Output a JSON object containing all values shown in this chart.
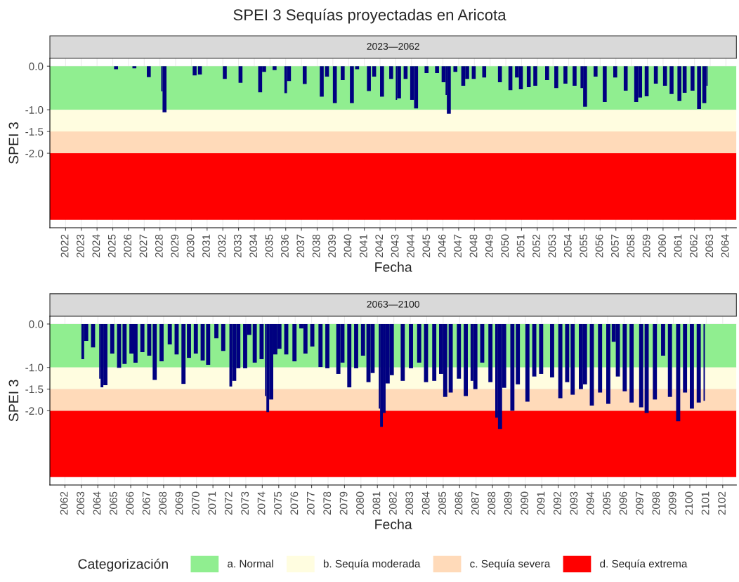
{
  "chart_data": [
    {
      "type": "bar",
      "title": "SPEI 3 Sequías proyectadas en Aricota",
      "subtitle": "2023—2062",
      "xlabel": "Fecha",
      "ylabel": "SPEI 3",
      "x": [
        "2025-02",
        "2026-04",
        "2027-03",
        "2028-02",
        "2028-03",
        "2030-02",
        "2030-06",
        "2032-01",
        "2033-01",
        "2034-04",
        "2034-07",
        "2035-03",
        "2035-12",
        "2036-02",
        "2037-02",
        "2038-03",
        "2038-07",
        "2039-01",
        "2039-07",
        "2040-02",
        "2040-06",
        "2041-03",
        "2041-07",
        "2042-01",
        "2042-08",
        "2043-01",
        "2043-02",
        "2043-07",
        "2043-12",
        "2044-03",
        "2044-11",
        "2045-07",
        "2045-12",
        "2046-03",
        "2046-04",
        "2046-09",
        "2047-03",
        "2047-06",
        "2047-11",
        "2048-07",
        "2049-07",
        "2050-03",
        "2050-08",
        "2050-11",
        "2051-05",
        "2051-10",
        "2052-07",
        "2053-02",
        "2053-09",
        "2054-04",
        "2054-10",
        "2054-12",
        "2055-08",
        "2056-03",
        "2056-11",
        "2057-07",
        "2058-03",
        "2058-06",
        "2058-11",
        "2059-06",
        "2060-01",
        "2060-06",
        "2060-12",
        "2061-04",
        "2061-10",
        "2062-03",
        "2062-07",
        "2062-10"
      ],
      "series": [
        {
          "color": "#000080",
          "values": [
            -0.07,
            -0.05,
            -0.25,
            -0.58,
            -1.06,
            -0.21,
            -0.19,
            -0.29,
            -0.38,
            -0.6,
            -0.13,
            -0.09,
            -0.62,
            -0.34,
            -0.41,
            -0.7,
            -0.24,
            -0.85,
            -0.32,
            -0.85,
            -0.07,
            -0.57,
            -0.24,
            -0.7,
            -0.29,
            -0.77,
            -0.74,
            -0.29,
            -0.77,
            -0.97,
            -0.16,
            -0.16,
            -0.37,
            -0.66,
            -1.09,
            -0.13,
            -0.45,
            -0.29,
            -0.29,
            -0.26,
            -0.37,
            -0.55,
            -0.26,
            -0.53,
            -0.48,
            -0.45,
            -0.32,
            -0.5,
            -0.4,
            -0.45,
            -0.5,
            -0.93,
            -0.24,
            -0.82,
            -0.26,
            -0.56,
            -0.82,
            -0.72,
            -0.69,
            -0.4,
            -0.45,
            -0.64,
            -0.8,
            -0.61,
            -0.56,
            -0.98,
            -0.85,
            -0.45
          ]
        }
      ],
      "xlim": [
        "2021-01",
        "2064-09"
      ],
      "xticks": [
        "2022",
        "2023",
        "2024",
        "2025",
        "2026",
        "2027",
        "2028",
        "2029",
        "2030",
        "2031",
        "2032",
        "2033",
        "2034",
        "2035",
        "2036",
        "2037",
        "2038",
        "2039",
        "2040",
        "2041",
        "2042",
        "2043",
        "2044",
        "2045",
        "2046",
        "2047",
        "2048",
        "2049",
        "2050",
        "2051",
        "2052",
        "2053",
        "2054",
        "2055",
        "2056",
        "2057",
        "2058",
        "2059",
        "2060",
        "2061",
        "2062",
        "2063",
        "2064"
      ],
      "ylim": [
        -3.71,
        0.18
      ],
      "yticks": [
        {
          "value": 0,
          "label": "0.0"
        },
        {
          "value": -1,
          "label": "-1.0"
        },
        {
          "value": -1.5,
          "label": "-1.5"
        },
        {
          "value": -2,
          "label": "-2.0"
        }
      ],
      "bands": [
        {
          "axis": "y",
          "from": 0,
          "to": -1,
          "color": "#90ee90"
        },
        {
          "axis": "y",
          "from": -1,
          "to": -1.5,
          "color": "#fffde0"
        },
        {
          "axis": "y",
          "from": -1.5,
          "to": -2,
          "color": "#ffdab9"
        },
        {
          "axis": "y",
          "from": -2,
          "to": -3.53,
          "color": "#ff0000"
        }
      ],
      "grid": true
    },
    {
      "type": "bar",
      "subtitle": "2063—2100",
      "xlabel": "Fecha",
      "ylabel": "SPEI 3",
      "legend_title": "Categorización",
      "legend": "bottom",
      "x": [
        "2063-01",
        "2063-03",
        "2063-08",
        "2064-02",
        "2064-03",
        "2064-05",
        "2064-10",
        "2065-03",
        "2065-07",
        "2065-12",
        "2066-03",
        "2066-08",
        "2067-01",
        "2067-05",
        "2067-10",
        "2068-04",
        "2068-09",
        "2069-02",
        "2069-06",
        "2069-11",
        "2070-04",
        "2070-08",
        "2071-02",
        "2071-07",
        "2072-01",
        "2072-03",
        "2072-06",
        "2072-11",
        "2073-02",
        "2073-06",
        "2073-11",
        "2074-03",
        "2074-04",
        "2074-06",
        "2074-09",
        "2074-12",
        "2075-05",
        "2075-11",
        "2076-04",
        "2076-07",
        "2076-12",
        "2077-06",
        "2077-11",
        "2078-07",
        "2078-10",
        "2079-03",
        "2079-08",
        "2080-01",
        "2080-05",
        "2080-08",
        "2081-02",
        "2081-03",
        "2081-05",
        "2081-07",
        "2081-10",
        "2082-06",
        "2082-12",
        "2083-06",
        "2083-11",
        "2084-05",
        "2084-10",
        "2085-01",
        "2085-05",
        "2085-11",
        "2086-04",
        "2086-09",
        "2086-11",
        "2087-04",
        "2087-10",
        "2088-03",
        "2088-05",
        "2088-08",
        "2089-02",
        "2089-06",
        "2090-01",
        "2090-06",
        "2090-11",
        "2091-07",
        "2092-01",
        "2092-06",
        "2092-10",
        "2093-04",
        "2093-07",
        "2093-12",
        "2094-06",
        "2094-12",
        "2095-04",
        "2095-07",
        "2095-12",
        "2096-05",
        "2096-12",
        "2097-04",
        "2097-10",
        "2098-04",
        "2098-09",
        "2099-03",
        "2099-08",
        "2100-01",
        "2100-06",
        "2100-11"
      ],
      "series": [
        {
          "color": "#000080",
          "values": [
            -0.81,
            -0.39,
            -0.54,
            -1.26,
            -1.46,
            -1.41,
            -0.68,
            -1.01,
            -0.92,
            -0.68,
            -0.89,
            -0.65,
            -0.73,
            -1.29,
            -0.86,
            -0.47,
            -0.7,
            -1.38,
            -0.78,
            -0.68,
            -0.84,
            -0.94,
            -0.33,
            -0.62,
            -1.44,
            -1.31,
            -1.02,
            -1.02,
            -0.25,
            -0.89,
            -0.81,
            -1.66,
            -2.03,
            -1.74,
            -0.7,
            -0.57,
            -0.7,
            -0.86,
            -0.1,
            -0.68,
            -0.52,
            -0.99,
            -1.02,
            -1.15,
            -0.89,
            -1.46,
            -1.02,
            -0.73,
            -1.34,
            -1.13,
            -1.95,
            -2.37,
            -2.05,
            -1.37,
            -1.18,
            -1.31,
            -1.02,
            -0.89,
            -1.34,
            -1.31,
            -1.15,
            -1.68,
            -1.58,
            -1.26,
            -1.66,
            -1.31,
            -1.5,
            -0.89,
            -1.34,
            -2.16,
            -2.42,
            -1.47,
            -2.0,
            -1.39,
            -1.79,
            -1.21,
            -1.15,
            -1.23,
            -1.71,
            -1.34,
            -1.63,
            -1.5,
            -1.39,
            -1.88,
            -1.58,
            -1.84,
            -0.41,
            -1.21,
            -1.55,
            -1.81,
            -1.92,
            -2.05,
            -1.74,
            -0.73,
            -1.68,
            -2.24,
            -1.58,
            -1.95,
            -1.81,
            -1.77
          ]
        }
      ],
      "xlim": [
        "2061-02",
        "2102-11"
      ],
      "xticks": [
        "2062",
        "2063",
        "2064",
        "2065",
        "2066",
        "2067",
        "2068",
        "2069",
        "2070",
        "2071",
        "2072",
        "2073",
        "2074",
        "2075",
        "2076",
        "2077",
        "2078",
        "2079",
        "2080",
        "2081",
        "2082",
        "2083",
        "2084",
        "2085",
        "2086",
        "2087",
        "2088",
        "2089",
        "2090",
        "2091",
        "2092",
        "2093",
        "2094",
        "2095",
        "2096",
        "2097",
        "2098",
        "2099",
        "2100",
        "2101",
        "2102"
      ],
      "ylim": [
        -3.71,
        0.18
      ],
      "yticks": [
        {
          "value": 0,
          "label": "0.0"
        },
        {
          "value": -1,
          "label": "-1.0"
        },
        {
          "value": -1.5,
          "label": "-1.5"
        },
        {
          "value": -2,
          "label": "-2.0"
        }
      ],
      "bands": [
        {
          "axis": "y",
          "from": 0,
          "to": -1,
          "color": "#90ee90",
          "label": "a. Normal"
        },
        {
          "axis": "y",
          "from": -1,
          "to": -1.5,
          "color": "#fffde0",
          "label": "b. Sequía moderada"
        },
        {
          "axis": "y",
          "from": -1.5,
          "to": -2,
          "color": "#ffdab9",
          "label": "c. Sequía severa"
        },
        {
          "axis": "y",
          "from": -2,
          "to": -3.53,
          "color": "#ff0000",
          "label": "d. Sequía extrema"
        }
      ],
      "grid": true
    }
  ]
}
